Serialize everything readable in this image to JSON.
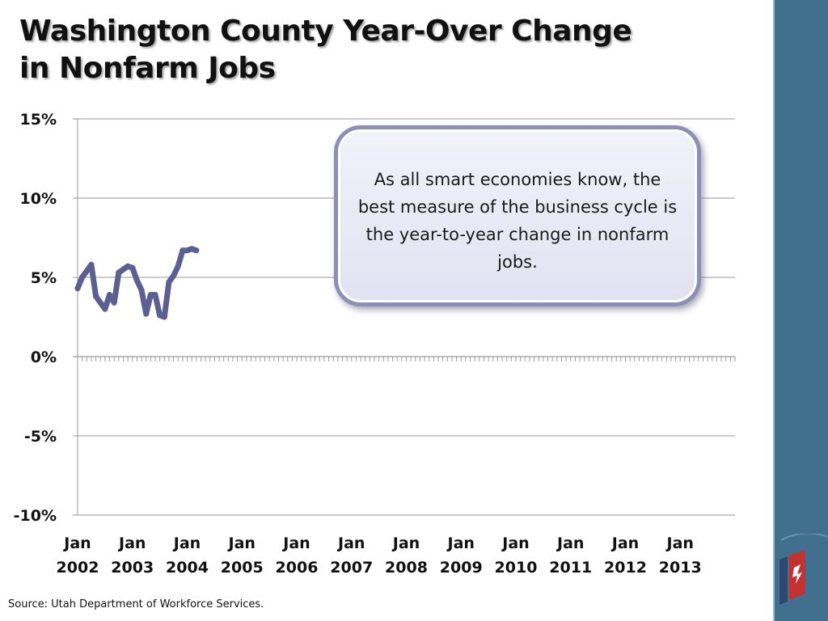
{
  "title": {
    "line1": "Washington County Year-Over Change",
    "line2": "in Nonfarm Jobs"
  },
  "callout": "As all smart economies know, the best measure of the business cycle is the year-to-year change in nonfarm jobs.",
  "source": "Source: Utah Department of Workforce Services.",
  "colors": {
    "series": "#5b5f92",
    "sidebar": "#41708f",
    "gridline": "#9a9a9a"
  },
  "chart_data": {
    "type": "line",
    "title": "Washington County Year-Over Change in Nonfarm Jobs",
    "xlabel": "",
    "ylabel": "",
    "ylim": [
      -10,
      15
    ],
    "yticks": [
      15,
      10,
      5,
      0,
      -5,
      -10
    ],
    "ytick_labels": [
      "15%",
      "10%",
      "5%",
      "0%",
      "-5%",
      "-10%"
    ],
    "xlim": [
      "2002-01",
      "2013-12"
    ],
    "xtick_labels": [
      [
        "Jan",
        "2002"
      ],
      [
        "Jan",
        "2003"
      ],
      [
        "Jan",
        "2004"
      ],
      [
        "Jan",
        "2005"
      ],
      [
        "Jan",
        "2006"
      ],
      [
        "Jan",
        "2007"
      ],
      [
        "Jan",
        "2008"
      ],
      [
        "Jan",
        "2009"
      ],
      [
        "Jan",
        "2010"
      ],
      [
        "Jan",
        "2011"
      ],
      [
        "Jan",
        "2012"
      ],
      [
        "Jan",
        "2013"
      ]
    ],
    "grid": true,
    "series": [
      {
        "x": [
          "2002-01",
          "2002-02",
          "2002-03",
          "2002-04",
          "2002-05",
          "2002-06",
          "2002-07",
          "2002-08",
          "2002-09",
          "2002-10",
          "2002-11",
          "2002-12",
          "2003-01",
          "2003-02",
          "2003-03",
          "2003-04",
          "2003-05",
          "2003-06",
          "2003-07",
          "2003-08",
          "2003-09",
          "2003-10",
          "2003-11",
          "2003-12",
          "2004-01",
          "2004-02",
          "2004-03"
        ],
        "values": [
          4.3,
          5.0,
          5.4,
          5.8,
          3.8,
          3.4,
          3.0,
          3.9,
          3.4,
          5.3,
          5.5,
          5.7,
          5.6,
          4.8,
          4.2,
          2.7,
          3.9,
          3.9,
          2.6,
          2.5,
          4.7,
          5.1,
          5.7,
          6.7,
          6.7,
          6.8,
          6.7
        ]
      }
    ]
  }
}
